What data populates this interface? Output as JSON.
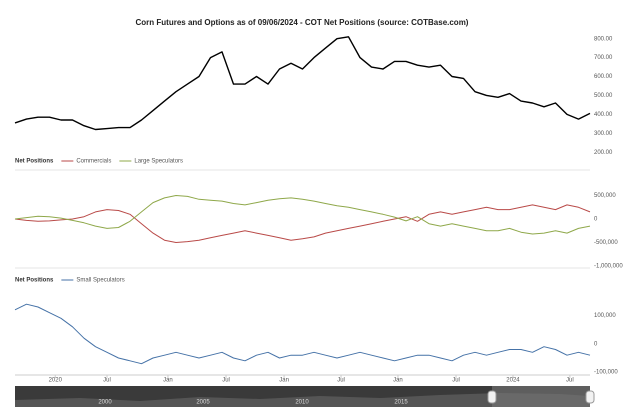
{
  "chart_data": [
    {
      "type": "line",
      "title": "Corn Futures and Options as of 09/06/2024 - COT Net Positions (source: COTBase.com)",
      "x": [
        0,
        2,
        4,
        6,
        8,
        10,
        12,
        14,
        16,
        18,
        20,
        22,
        24,
        26,
        28,
        30,
        32,
        34,
        36,
        38,
        40,
        42,
        44,
        46,
        48,
        50,
        52,
        54,
        56,
        58,
        60,
        62,
        64,
        66,
        68,
        70,
        72,
        74,
        76,
        78,
        80,
        82,
        84,
        86,
        88,
        90,
        92,
        94,
        96,
        98,
        100
      ],
      "xlim": [
        0,
        100
      ],
      "ylim": [
        180,
        830
      ],
      "yticks": [
        {
          "value": 200,
          "label": "200.00"
        },
        {
          "value": 300,
          "label": "300.00"
        },
        {
          "value": 400,
          "label": "400.00"
        },
        {
          "value": 500,
          "label": "500.00"
        },
        {
          "value": 600,
          "label": "600.00"
        },
        {
          "value": 700,
          "label": "700.00"
        },
        {
          "value": 800,
          "label": "800.00"
        }
      ],
      "series": [
        {
          "color": "#000000",
          "values": [
            355,
            375,
            385,
            385,
            370,
            370,
            340,
            320,
            325,
            330,
            330,
            370,
            420,
            470,
            520,
            560,
            600,
            700,
            730,
            560,
            560,
            600,
            560,
            640,
            670,
            640,
            700,
            750,
            800,
            810,
            700,
            650,
            640,
            680,
            680,
            660,
            650,
            660,
            600,
            590,
            520,
            500,
            490,
            510,
            470,
            460,
            440,
            460,
            400,
            375,
            405
          ]
        }
      ]
    },
    {
      "type": "line",
      "legend_title": "Net Positions",
      "x": [
        0,
        2,
        4,
        6,
        8,
        10,
        12,
        14,
        16,
        18,
        20,
        22,
        24,
        26,
        28,
        30,
        32,
        34,
        36,
        38,
        40,
        42,
        44,
        46,
        48,
        50,
        52,
        54,
        56,
        58,
        60,
        62,
        64,
        66,
        68,
        70,
        72,
        74,
        76,
        78,
        80,
        82,
        84,
        86,
        88,
        90,
        92,
        94,
        96,
        98,
        100
      ],
      "xlim": [
        0,
        100
      ],
      "ylim": [
        -1000000,
        1000000
      ],
      "yticks": [
        {
          "value": -1000000,
          "label": "-1,000,000"
        },
        {
          "value": -500000,
          "label": "-500,000"
        },
        0,
        {
          "value": 500000,
          "label": "500,000"
        }
      ],
      "series": [
        {
          "name": "Commercials",
          "color": "#b94a48",
          "values": [
            0,
            -30000,
            -50000,
            -40000,
            -20000,
            0,
            50000,
            150000,
            200000,
            180000,
            100000,
            -100000,
            -300000,
            -450000,
            -500000,
            -480000,
            -450000,
            -400000,
            -350000,
            -300000,
            -250000,
            -300000,
            -350000,
            -400000,
            -450000,
            -420000,
            -380000,
            -300000,
            -250000,
            -200000,
            -150000,
            -100000,
            -50000,
            0,
            50000,
            -50000,
            100000,
            150000,
            100000,
            150000,
            200000,
            250000,
            200000,
            200000,
            250000,
            300000,
            250000,
            200000,
            300000,
            250000,
            150000
          ]
        },
        {
          "name": "Large Speculators",
          "color": "#8fa84a",
          "values": [
            0,
            30000,
            60000,
            50000,
            20000,
            -30000,
            -80000,
            -150000,
            -200000,
            -180000,
            -50000,
            150000,
            350000,
            450000,
            500000,
            480000,
            420000,
            400000,
            380000,
            330000,
            300000,
            350000,
            400000,
            430000,
            450000,
            420000,
            380000,
            330000,
            280000,
            250000,
            200000,
            150000,
            100000,
            40000,
            -40000,
            50000,
            -100000,
            -150000,
            -100000,
            -150000,
            -200000,
            -250000,
            -250000,
            -200000,
            -280000,
            -320000,
            -300000,
            -250000,
            -300000,
            -200000,
            -150000
          ]
        }
      ]
    },
    {
      "type": "line",
      "legend_title": "Net Positions",
      "x": [
        0,
        2,
        4,
        6,
        8,
        10,
        12,
        14,
        16,
        18,
        20,
        22,
        24,
        26,
        28,
        30,
        32,
        34,
        36,
        38,
        40,
        42,
        44,
        46,
        48,
        50,
        52,
        54,
        56,
        58,
        60,
        62,
        64,
        66,
        68,
        70,
        72,
        74,
        76,
        78,
        80,
        82,
        84,
        86,
        88,
        90,
        92,
        94,
        96,
        98,
        100
      ],
      "xlim": [
        0,
        100
      ],
      "ylim": [
        -110000,
        190000
      ],
      "yticks": [
        {
          "value": -100000,
          "label": "-100,000"
        },
        0,
        {
          "value": 100000,
          "label": "100,000"
        }
      ],
      "xticks": [
        {
          "value": 7,
          "label": "2020"
        },
        {
          "value": 16,
          "label": "Jul"
        },
        {
          "value": 26.6,
          "label": "Jan"
        },
        {
          "value": 36.7,
          "label": "Jul"
        },
        {
          "value": 46.8,
          "label": "Jan"
        },
        {
          "value": 56.7,
          "label": "Jul"
        },
        {
          "value": 66.6,
          "label": "Jan"
        },
        {
          "value": 76.7,
          "label": "Jul"
        },
        {
          "value": 86.6,
          "label": "2024"
        },
        {
          "value": 96.5,
          "label": "Jul"
        }
      ],
      "series": [
        {
          "name": "Small Speculators",
          "color": "#4572a7",
          "values": [
            120000,
            140000,
            130000,
            110000,
            90000,
            60000,
            20000,
            -10000,
            -30000,
            -50000,
            -60000,
            -70000,
            -50000,
            -40000,
            -30000,
            -40000,
            -50000,
            -40000,
            -30000,
            -50000,
            -60000,
            -40000,
            -30000,
            -50000,
            -40000,
            -40000,
            -30000,
            -40000,
            -50000,
            -40000,
            -30000,
            -40000,
            -50000,
            -60000,
            -50000,
            -40000,
            -40000,
            -50000,
            -60000,
            -40000,
            -30000,
            -40000,
            -30000,
            -20000,
            -20000,
            -30000,
            -10000,
            -20000,
            -40000,
            -30000,
            -40000
          ]
        }
      ]
    }
  ],
  "navigator": {
    "labels": [
      "2000",
      "2005",
      "2010",
      "2015"
    ]
  }
}
